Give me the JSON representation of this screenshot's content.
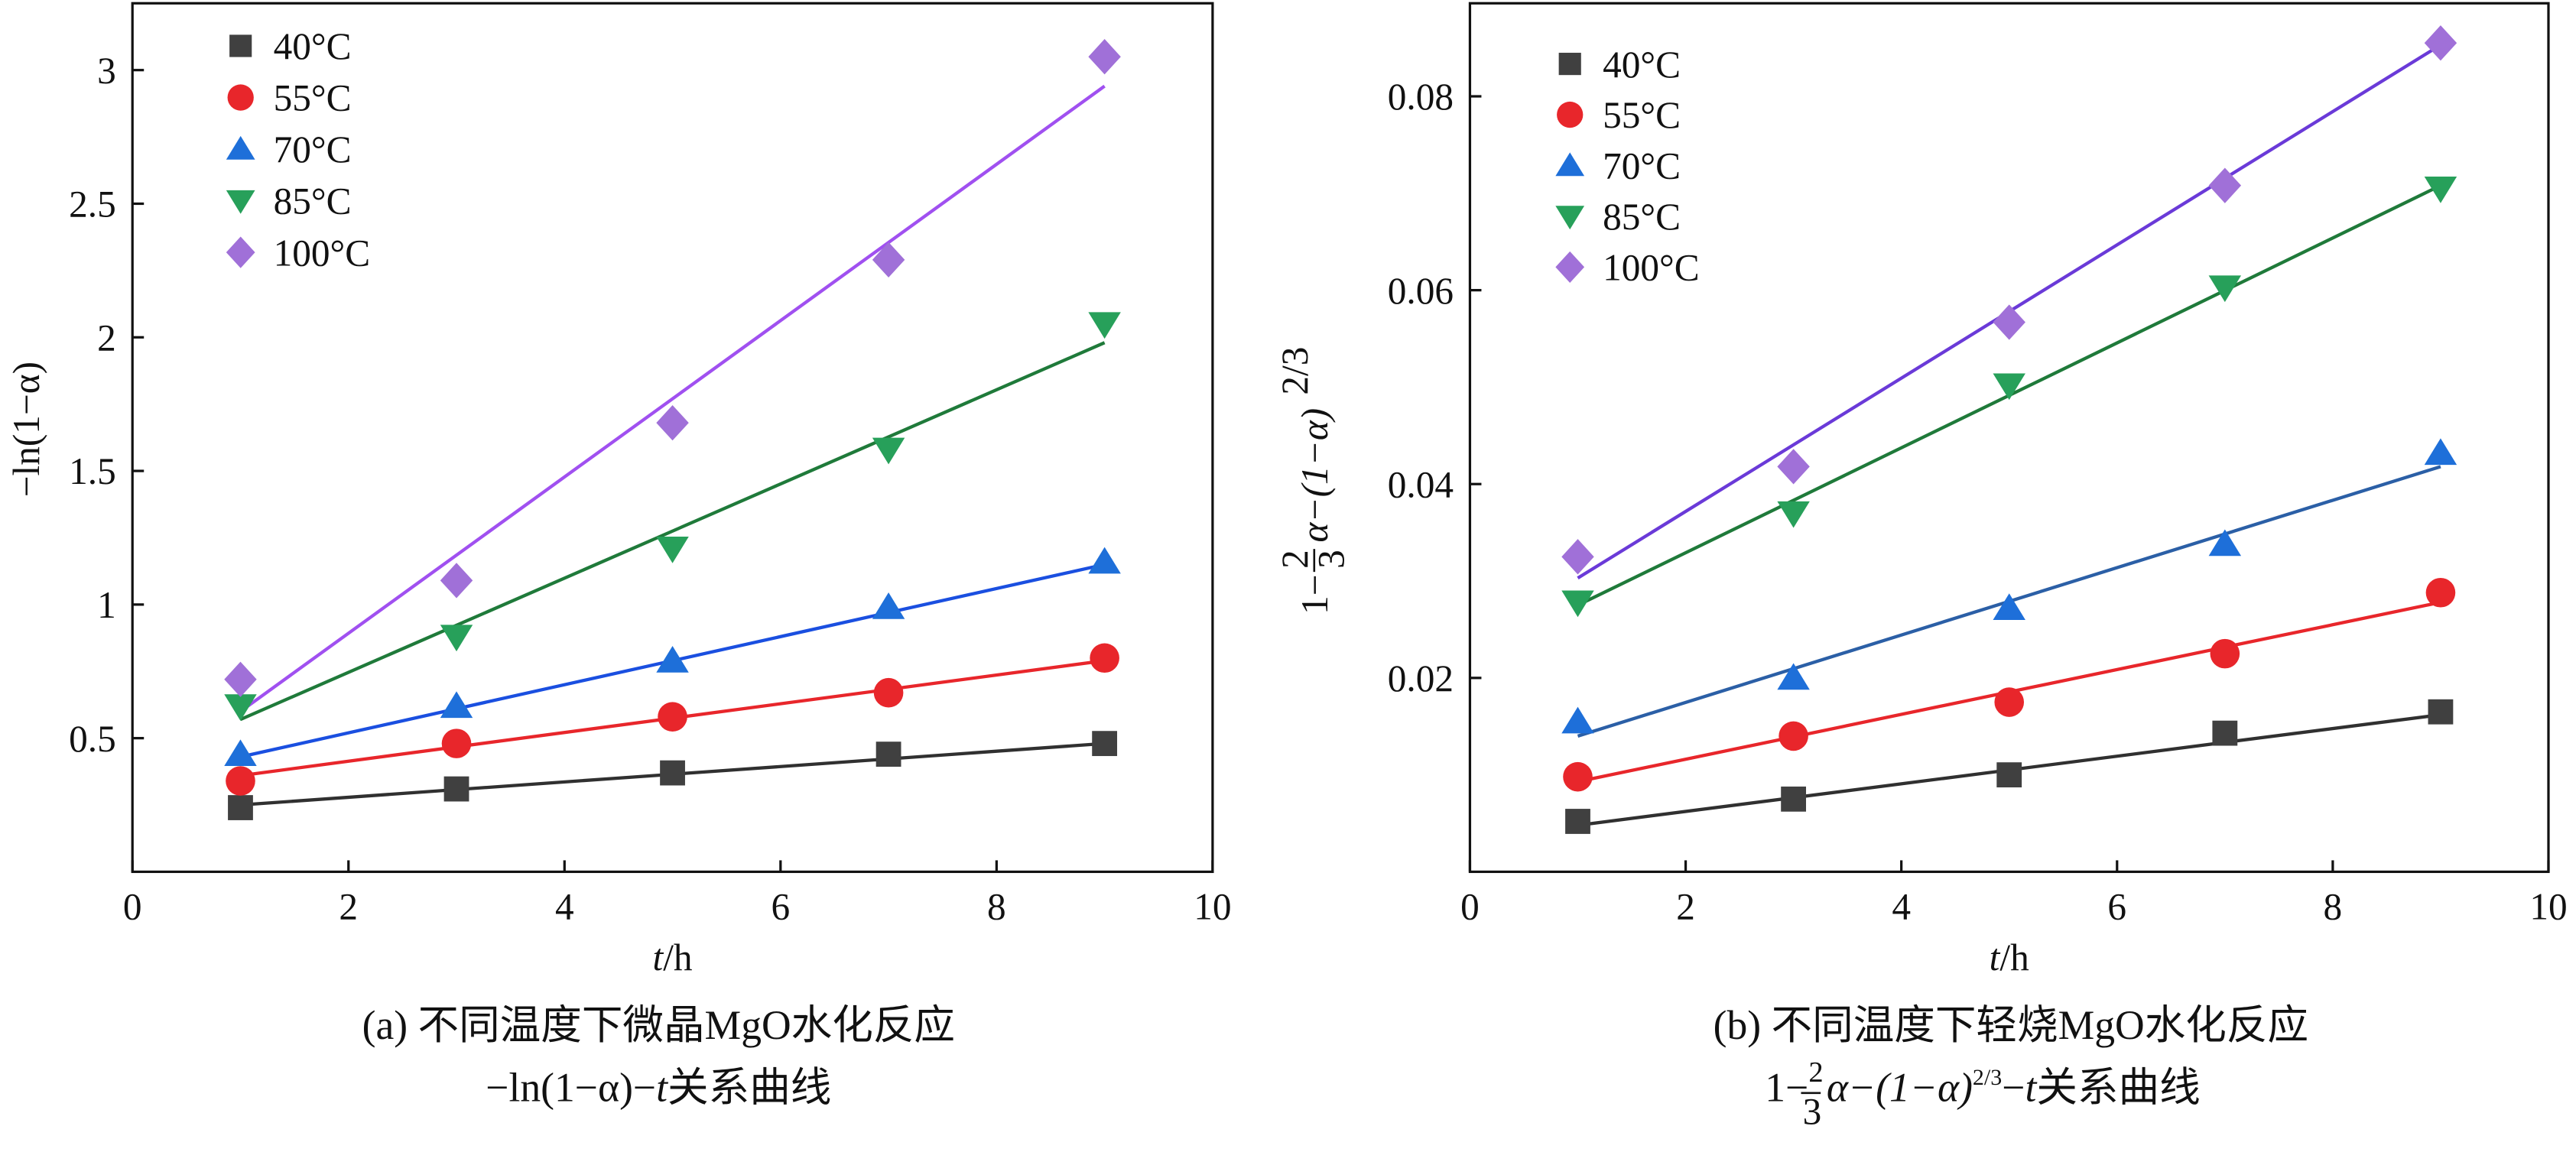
{
  "chart_data": [
    {
      "type": "scatter",
      "caption": [
        "(a) 不同温度下微晶MgO水化反应",
        [
          "−ln(1−α)−",
          "t",
          "关系曲线"
        ]
      ],
      "xlabel": [
        "t",
        "/h"
      ],
      "ylabel": "−ln(1−α)",
      "x": [
        1,
        3,
        5,
        7,
        9
      ],
      "xlim": [
        0,
        10
      ],
      "xticks": [
        0,
        2,
        4,
        6,
        8,
        10
      ],
      "ylim": [
        0,
        3.25
      ],
      "yticks": [
        0.5,
        1.0,
        1.5,
        2.0,
        2.5,
        3.0
      ],
      "yticks_labels_note": null,
      "series": [
        {
          "name": "40°C",
          "color": "#404040",
          "line_color": "#303030",
          "marker": "square",
          "values": [
            0.24,
            0.31,
            0.37,
            0.44,
            0.48
          ],
          "fit": [
            0.25,
            0.48
          ]
        },
        {
          "name": "55°C",
          "color": "#e8262b",
          "line_color": "#e8262b",
          "marker": "circle",
          "values": [
            0.34,
            0.48,
            0.58,
            0.67,
            0.8
          ],
          "fit": [
            0.36,
            0.79
          ]
        },
        {
          "name": "70°C",
          "color": "#1e6fd9",
          "line_color": "#1a4fe0",
          "marker": "triangle-up",
          "values": [
            0.44,
            0.62,
            0.79,
            0.99,
            1.16
          ],
          "fit": [
            0.43,
            1.15
          ]
        },
        {
          "name": "85°C",
          "color": "#27a05a",
          "line_color": "#1f7a3a",
          "marker": "triangle-down",
          "values": [
            0.62,
            0.88,
            1.21,
            1.58,
            2.05
          ],
          "fit": [
            0.57,
            1.98
          ]
        },
        {
          "name": "100°C",
          "color": "#a070d8",
          "line_color": "#a050f0",
          "marker": "diamond",
          "values": [
            0.72,
            1.09,
            1.68,
            2.29,
            3.05
          ],
          "fit": [
            0.6,
            2.94
          ]
        }
      ],
      "fit_x": [
        1,
        9
      ]
    },
    {
      "type": "scatter",
      "caption": [
        "(b) 不同温度下轻烧MgO水化反应",
        [
          "1−",
          "2",
          "3",
          "α−(1−α)",
          "2/3",
          "−",
          "t",
          "关系曲线"
        ]
      ],
      "xlabel": [
        "t",
        "/h"
      ],
      "ylabel": [
        "1−",
        "2",
        "3",
        "α−(1−α)",
        "2/3"
      ],
      "x": [
        1,
        3,
        5,
        7,
        9
      ],
      "xlim": [
        0,
        10
      ],
      "xticks": [
        0,
        2,
        4,
        6,
        8,
        10
      ],
      "ylim": [
        0,
        0.0896
      ],
      "yticks": [
        0.02,
        0.04,
        0.06,
        0.08
      ],
      "series": [
        {
          "name": "40°C",
          "color": "#404040",
          "line_color": "#303030",
          "marker": "square",
          "values": [
            0.0052,
            0.0075,
            0.01,
            0.0143,
            0.0165
          ],
          "fit": [
            0.0048,
            0.0162
          ]
        },
        {
          "name": "55°C",
          "color": "#e8262b",
          "line_color": "#e8262b",
          "marker": "circle",
          "values": [
            0.0098,
            0.014,
            0.0175,
            0.0225,
            0.0288
          ],
          "fit": [
            0.0093,
            0.0278
          ]
        },
        {
          "name": "70°C",
          "color": "#1e6fd9",
          "line_color": "#2b5fa6",
          "marker": "triangle-up",
          "values": [
            0.0155,
            0.02,
            0.0272,
            0.0338,
            0.0432
          ],
          "fit": [
            0.014,
            0.0418
          ]
        },
        {
          "name": "85°C",
          "color": "#27a05a",
          "line_color": "#1f7a3a",
          "marker": "triangle-down",
          "values": [
            0.0278,
            0.037,
            0.0502,
            0.0603,
            0.0705
          ],
          "fit": [
            0.0275,
            0.0708
          ]
        },
        {
          "name": "100°C",
          "color": "#a070d8",
          "line_color": "#6a3ad8",
          "marker": "diamond",
          "values": [
            0.0325,
            0.0418,
            0.0567,
            0.0708,
            0.0855
          ],
          "fit": [
            0.0303,
            0.0853
          ]
        }
      ],
      "fit_x": [
        1,
        9
      ]
    }
  ]
}
